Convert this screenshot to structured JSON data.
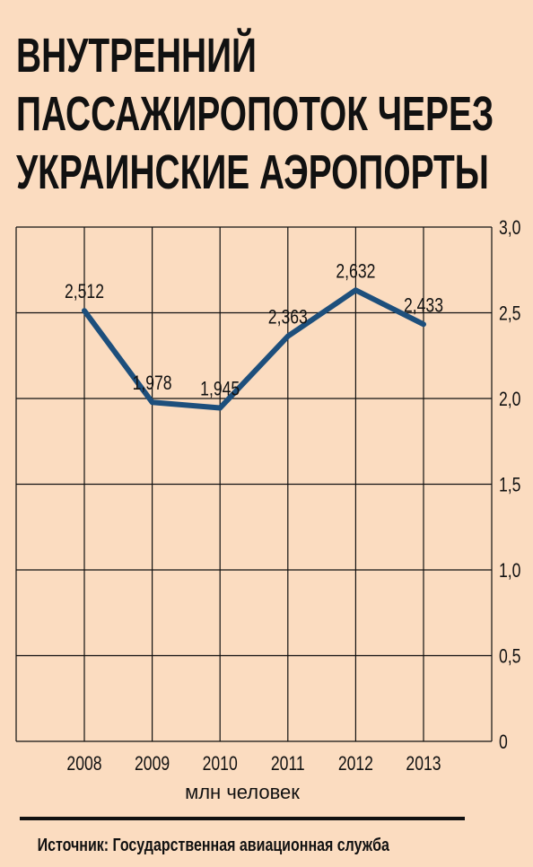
{
  "chart_data": {
    "type": "line",
    "title": [
      "ВНУТРЕННИЙ",
      "ПАССАЖИРОПОТОК ЧЕРЕЗ",
      "УКРАИНСКИЕ АЭРОПОРТЫ"
    ],
    "categories": [
      "2008",
      "2009",
      "2010",
      "2011",
      "2012",
      "2013"
    ],
    "values": [
      2.512,
      1.978,
      1.945,
      2.363,
      2.632,
      2.433
    ],
    "value_labels": [
      "2,512",
      "1,978",
      "1,945",
      "2,363",
      "2,632",
      "2,433"
    ],
    "color": "#1d4f7c",
    "ylim": [
      0,
      3
    ],
    "yticks": [
      0,
      {
        "value": 0.5,
        "label": "0,5"
      },
      {
        "value": 1,
        "label": "1,0"
      },
      {
        "value": 1.5,
        "label": "1,5"
      },
      {
        "value": 2,
        "label": "2,0"
      },
      {
        "value": 2.5,
        "label": "2,5"
      },
      {
        "value": 3,
        "label": "3,0"
      }
    ],
    "grid": true,
    "x_label": "млн человек",
    "source": "Источник: Государственная авиационная служба"
  }
}
